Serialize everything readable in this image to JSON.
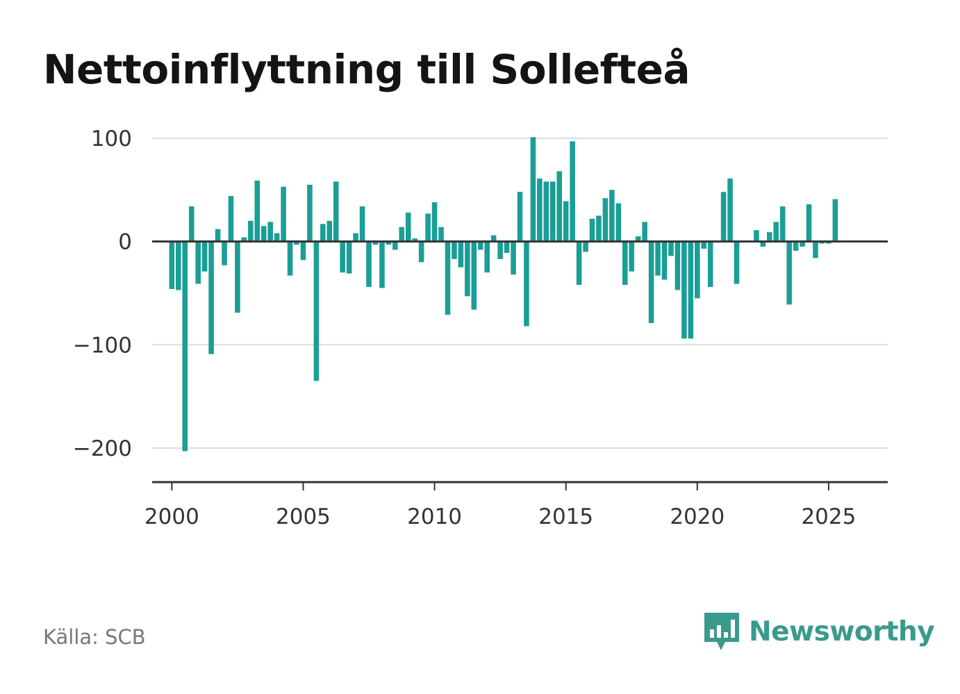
{
  "title": "Nettoinflyttning till Sollefteå",
  "source": "Källa: SCB",
  "brand": {
    "name": "Newsworthy",
    "logo_icon": "newsworthy-bar-chart-icon"
  },
  "colors": {
    "bar": "#1a9e96",
    "brand": "#3a9a8c",
    "axis": "#333333",
    "grid": "#dddddd"
  },
  "chart_data": {
    "type": "bar",
    "title": "Nettoinflyttning till Sollefteå",
    "xlabel": "",
    "ylabel": "",
    "x_ticks": [
      2000,
      2005,
      2010,
      2015,
      2020,
      2025
    ],
    "x_tick_labels": [
      "2000",
      "2005",
      "2010",
      "2015",
      "2020",
      "2025"
    ],
    "y_ticks": [
      100,
      0,
      -100,
      -200
    ],
    "y_tick_labels": [
      "100",
      "0",
      "−100",
      "−200"
    ],
    "xlim": [
      1999.25,
      2027.25
    ],
    "ylim": [
      -233,
      102
    ],
    "grid": true,
    "legend": "none",
    "x": [
      2000.0,
      2000.25,
      2000.5,
      2000.75,
      2001.0,
      2001.25,
      2001.5,
      2001.75,
      2002.0,
      2002.25,
      2002.5,
      2002.75,
      2003.0,
      2003.25,
      2003.5,
      2003.75,
      2004.0,
      2004.25,
      2004.5,
      2004.75,
      2005.0,
      2005.25,
      2005.5,
      2005.75,
      2006.0,
      2006.25,
      2006.5,
      2006.75,
      2007.0,
      2007.25,
      2007.5,
      2007.75,
      2008.0,
      2008.25,
      2008.5,
      2008.75,
      2009.0,
      2009.25,
      2009.5,
      2009.75,
      2010.0,
      2010.25,
      2010.5,
      2010.75,
      2011.0,
      2011.25,
      2011.5,
      2011.75,
      2012.0,
      2012.25,
      2012.5,
      2012.75,
      2013.0,
      2013.25,
      2013.5,
      2013.75,
      2014.0,
      2014.25,
      2014.5,
      2014.75,
      2015.0,
      2015.25,
      2015.5,
      2015.75,
      2016.0,
      2016.25,
      2016.5,
      2016.75,
      2017.0,
      2017.25,
      2017.5,
      2017.75,
      2018.0,
      2018.25,
      2018.5,
      2018.75,
      2019.0,
      2019.25,
      2019.5,
      2019.75,
      2020.0,
      2020.25,
      2020.5,
      2020.75,
      2021.0,
      2021.25,
      2021.5,
      2021.75,
      2022.0,
      2022.25,
      2022.5,
      2022.75,
      2023.0,
      2023.25,
      2023.5,
      2023.75,
      2024.0,
      2024.25,
      2024.5,
      2024.75,
      2025.0,
      2025.25
    ],
    "values": [
      -46,
      -47,
      -203,
      34,
      -41,
      -29,
      -109,
      12,
      -23,
      44,
      -69,
      4,
      20,
      59,
      15,
      19,
      8,
      53,
      -33,
      -3,
      -18,
      55,
      -135,
      17,
      20,
      58,
      -30,
      -31,
      8,
      34,
      -44,
      -3,
      -45,
      -3,
      -8,
      14,
      28,
      3,
      -20,
      27,
      38,
      14,
      -71,
      -17,
      -25,
      -53,
      -66,
      -8,
      -30,
      6,
      -17,
      -11,
      -32,
      48,
      -82,
      101,
      61,
      58,
      58,
      68,
      39,
      97,
      -42,
      -10,
      22,
      25,
      42,
      50,
      37,
      -42,
      -29,
      5,
      19,
      -79,
      -33,
      -37,
      -14,
      -47,
      -94,
      -94,
      -55,
      -7,
      -44,
      -1,
      48,
      61,
      -41,
      0,
      0,
      11,
      -5,
      9,
      19,
      34,
      -61,
      -9,
      -5,
      36,
      -16,
      -2,
      -2,
      41
    ]
  }
}
